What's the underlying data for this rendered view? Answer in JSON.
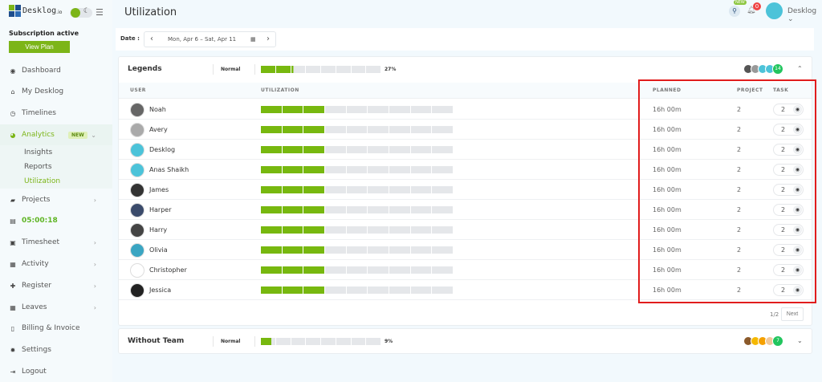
{
  "brand": {
    "name": "Desklog",
    "suffix": ".io"
  },
  "sidebar": {
    "subscription": "Subscription active",
    "view_plan": "View Plan",
    "items": [
      {
        "label": "Dashboard",
        "icon": "dashboard-icon"
      },
      {
        "label": "My Desklog",
        "icon": "home-icon"
      },
      {
        "label": "Timelines",
        "icon": "clock-icon"
      },
      {
        "label": "Analytics",
        "icon": "pie-chart-icon",
        "badge": "NEW"
      },
      {
        "label": "Projects",
        "icon": "folder-icon"
      },
      {
        "label": "05:00:18",
        "icon": "timer-icon"
      },
      {
        "label": "Timesheet",
        "icon": "timesheet-icon"
      },
      {
        "label": "Activity",
        "icon": "grid-icon"
      },
      {
        "label": "Register",
        "icon": "plus-icon"
      },
      {
        "label": "Leaves",
        "icon": "calendar-icon"
      },
      {
        "label": "Billing & Invoice",
        "icon": "invoice-icon"
      },
      {
        "label": "Settings",
        "icon": "gear-icon"
      },
      {
        "label": "Logout",
        "icon": "logout-icon"
      }
    ],
    "analytics_sub": [
      "Insights",
      "Reports",
      "Utilization"
    ]
  },
  "header": {
    "title": "Utilization",
    "search_badge": "NEW",
    "notifications": "0",
    "user": "Desklog"
  },
  "date": {
    "label": "Date :",
    "range": "Mon, Apr 6 – Sat, Apr 11"
  },
  "colors": {
    "accent": "#7cb518",
    "bar_on": "#77b80f",
    "bar_off": "#e5e7ea",
    "highlight": "#e11d1d"
  },
  "teams": [
    {
      "name": "Legends",
      "mode": "Normal",
      "utilization_pct": 27,
      "percent_label": "27%",
      "member_count": "14",
      "expanded": true
    },
    {
      "name": "Without Team",
      "mode": "Normal",
      "utilization_pct": 9,
      "percent_label": "9%",
      "member_count": "7",
      "expanded": false
    }
  ],
  "table": {
    "columns": {
      "user": "USER",
      "utilization": "UTILIZATION",
      "planned": "PLANNED",
      "project": "PROJECT",
      "task": "TASK"
    },
    "rows": [
      {
        "name": "Noah",
        "planned": "16h 00m",
        "project": "2",
        "task": "2",
        "util_segments": 3
      },
      {
        "name": "Avery",
        "planned": "16h 00m",
        "project": "2",
        "task": "2",
        "util_segments": 3
      },
      {
        "name": "Desklog",
        "planned": "16h 00m",
        "project": "2",
        "task": "2",
        "util_segments": 3
      },
      {
        "name": "Anas Shaikh",
        "planned": "16h 00m",
        "project": "2",
        "task": "2",
        "util_segments": 3
      },
      {
        "name": "James",
        "planned": "16h 00m",
        "project": "2",
        "task": "2",
        "util_segments": 3
      },
      {
        "name": "Harper",
        "planned": "16h 00m",
        "project": "2",
        "task": "2",
        "util_segments": 3
      },
      {
        "name": "Harry",
        "planned": "16h 00m",
        "project": "2",
        "task": "2",
        "util_segments": 3
      },
      {
        "name": "Olivia",
        "planned": "16h 00m",
        "project": "2",
        "task": "2",
        "util_segments": 3
      },
      {
        "name": "Christopher",
        "planned": "16h 00m",
        "project": "2",
        "task": "2",
        "util_segments": 3
      },
      {
        "name": "Jessica",
        "planned": "16h 00m",
        "project": "2",
        "task": "2",
        "util_segments": 3
      }
    ]
  },
  "pagination": {
    "page": "1/2",
    "next": "Next"
  }
}
